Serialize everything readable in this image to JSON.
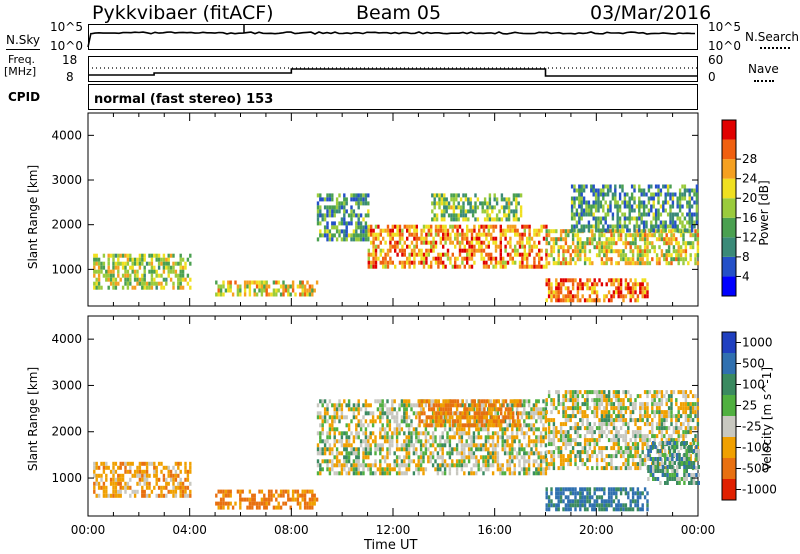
{
  "header": {
    "station": "Pykkvibaer (fitACF)",
    "beam": "Beam 05",
    "date": "03/Mar/2016"
  },
  "strip_nsky": {
    "left_label": "N.Sky",
    "right_label": "N.Search",
    "left_ticks": [
      "10^5",
      "10^0"
    ],
    "right_ticks": [
      "10^5",
      "10^0"
    ]
  },
  "strip_freq": {
    "left_label_top": "Freq.",
    "left_label_unit": "[MHz]",
    "right_label": "Nave",
    "left_ticks": [
      "18",
      "8"
    ],
    "right_ticks": [
      "60",
      "0"
    ]
  },
  "strip_cpid": {
    "label": "CPID",
    "program": "normal (fast stereo) 153"
  },
  "x_axis": {
    "ticks": [
      "00:00",
      "04:00",
      "08:00",
      "12:00",
      "16:00",
      "20:00",
      "00:00"
    ],
    "title": "Time UT"
  },
  "chart_data": [
    {
      "type": "heatmap",
      "title": "Power",
      "ylabel": "Slant Range [km]",
      "ylim": [
        180,
        4500
      ],
      "yticks": [
        "1000",
        "2000",
        "3000",
        "4000"
      ],
      "xlim_hours": [
        0,
        24
      ],
      "colorbar": {
        "label": "Power [dB]",
        "range": [
          0,
          32
        ],
        "ticks": [
          "4",
          "8",
          "12",
          "16",
          "20",
          "24",
          "28"
        ]
      },
      "echo_regions": [
        {
          "t0": 0.2,
          "t1": 4.0,
          "r0": 580,
          "r1": 1350,
          "level": 0.55
        },
        {
          "t0": 5.0,
          "t1": 9.0,
          "r0": 400,
          "r1": 750,
          "level": 0.6
        },
        {
          "t0": 9.0,
          "t1": 11.0,
          "r0": 1700,
          "r1": 2700,
          "level": 0.35
        },
        {
          "t0": 11.0,
          "t1": 18.0,
          "r0": 1100,
          "r1": 2000,
          "level": 0.75
        },
        {
          "t0": 13.5,
          "t1": 17.0,
          "r0": 2100,
          "r1": 2700,
          "level": 0.45
        },
        {
          "t0": 18.0,
          "t1": 24.0,
          "r0": 1100,
          "r1": 1900,
          "level": 0.6
        },
        {
          "t0": 19.0,
          "t1": 24.0,
          "r0": 1900,
          "r1": 2900,
          "level": 0.35
        },
        {
          "t0": 18.0,
          "t1": 22.0,
          "r0": 350,
          "r1": 800,
          "level": 0.8
        }
      ]
    },
    {
      "type": "heatmap",
      "title": "Velocity",
      "ylabel": "Slant Range [km]",
      "ylim": [
        180,
        4500
      ],
      "yticks": [
        "1000",
        "2000",
        "3000",
        "4000"
      ],
      "xlim_hours": [
        0,
        24
      ],
      "colorbar": {
        "label": "Velocity [m s^-1]",
        "range": [
          -1000,
          1000
        ],
        "ticks": [
          "1000",
          "500",
          "100",
          "25",
          "-25",
          "-100",
          "-500",
          "-1000"
        ]
      },
      "echo_regions": [
        {
          "t0": 0.2,
          "t1": 4.0,
          "r0": 580,
          "r1": 1350,
          "vel": -60
        },
        {
          "t0": 5.0,
          "t1": 9.0,
          "r0": 400,
          "r1": 750,
          "vel": -120
        },
        {
          "t0": 9.0,
          "t1": 18.0,
          "r0": 1100,
          "r1": 2700,
          "vel": 0
        },
        {
          "t0": 13.0,
          "t1": 17.0,
          "r0": 2100,
          "r1": 2700,
          "vel": -120
        },
        {
          "t0": 18.0,
          "t1": 24.0,
          "r0": 1200,
          "r1": 2900,
          "vel": 0
        },
        {
          "t0": 22.0,
          "t1": 24.0,
          "r0": 900,
          "r1": 1800,
          "vel": 60
        },
        {
          "t0": 18.0,
          "t1": 22.0,
          "r0": 350,
          "r1": 800,
          "vel": 120
        }
      ]
    }
  ]
}
